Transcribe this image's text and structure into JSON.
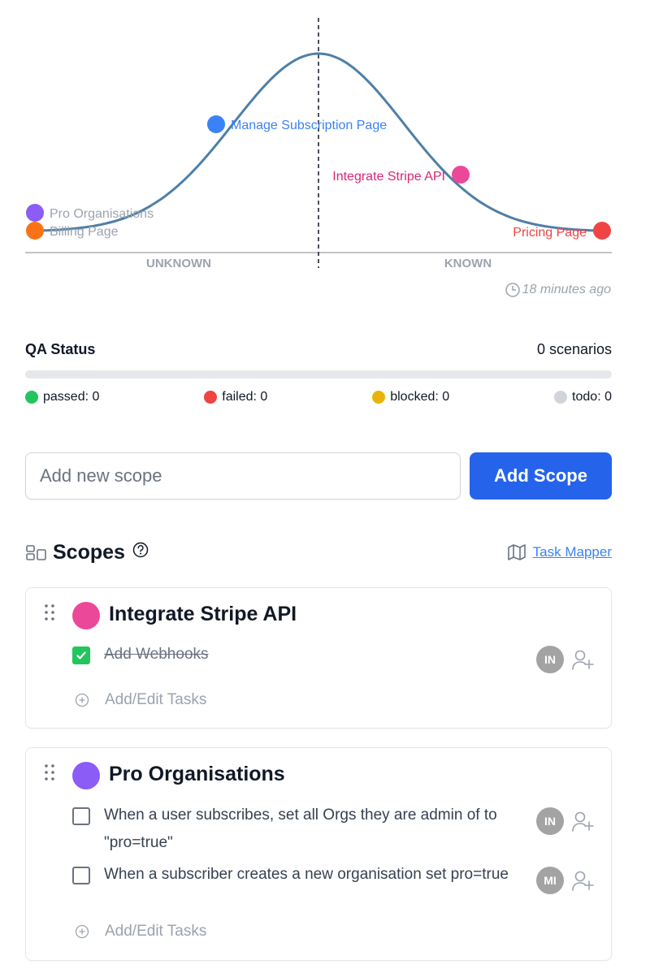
{
  "hill_chart": {
    "x_labels": {
      "left": "UNKNOWN",
      "right": "KNOWN"
    },
    "points": [
      {
        "label": "Pro Organisations",
        "color": "#8b5cf6"
      },
      {
        "label": "Billing Page",
        "color": "#f97316"
      },
      {
        "label": "Manage Subscription Page",
        "color": "#3b82f6"
      },
      {
        "label": "Integrate Stripe API",
        "color": "#ec4899"
      },
      {
        "label": "Pricing Page",
        "color": "#ef4444"
      }
    ],
    "updated": "18 minutes ago"
  },
  "qa_status": {
    "title": "QA Status",
    "count": "0 scenarios",
    "progress_percent": 0,
    "legend": [
      {
        "label": "passed: 0",
        "color": "#22c55e"
      },
      {
        "label": "failed: 0",
        "color": "#ef4444"
      },
      {
        "label": "blocked: 0",
        "color": "#eab308"
      },
      {
        "label": "todo: 0",
        "color": "#d1d5db"
      }
    ]
  },
  "add_scope": {
    "placeholder": "Add new scope",
    "button_label": "Add Scope"
  },
  "scopes": {
    "title": "Scopes",
    "task_mapper_label": "Task Mapper",
    "items": [
      {
        "name": "Integrate Stripe API",
        "color": "#ec4899",
        "tasks": [
          {
            "text": "Add Webhooks",
            "done": true,
            "assignee": "IN"
          }
        ],
        "add_label": "Add/Edit Tasks"
      },
      {
        "name": "Pro Organisations",
        "color": "#8b5cf6",
        "tasks": [
          {
            "text": "When a user subscribes, set all Orgs they are admin of to \"pro=true\"",
            "done": false,
            "assignee": "IN"
          },
          {
            "text": "When a subscriber creates a new organisation set pro=true",
            "done": false,
            "assignee": "MI"
          }
        ],
        "add_label": "Add/Edit Tasks"
      }
    ]
  }
}
